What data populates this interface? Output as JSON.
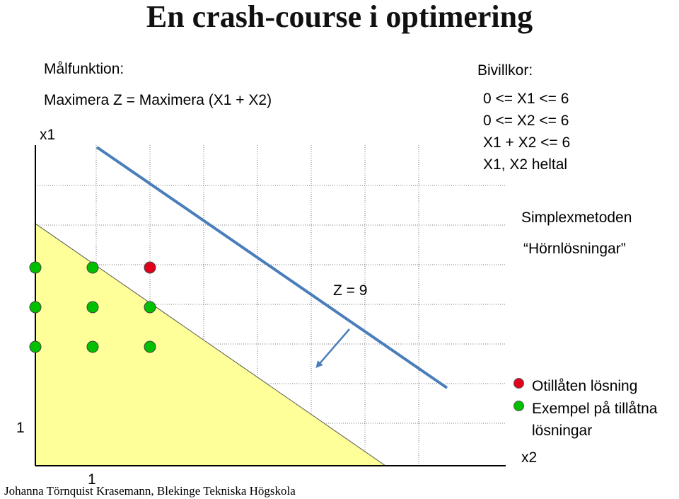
{
  "title": "En crash-course i optimering",
  "objective": {
    "heading": "Målfunktion:",
    "formula": "Maximera Z = Maximera (X1 + X2)"
  },
  "constraints": {
    "heading": "Bivillkor:",
    "items": [
      "0 <= X1 <= 6",
      "0 <= X2 <= 6",
      "X1 + X2 <= 6",
      "X1, X2 heltal"
    ]
  },
  "method": {
    "name": "Simplexmetoden",
    "note": "“Hörnlösningar”"
  },
  "diagram": {
    "x1_axis_label": "x1",
    "x2_axis_label": "x2",
    "tick_x1": "1",
    "tick_x2": "1",
    "objective_line_label": "Z = 9",
    "region_color": "#ffff99",
    "line_color": "#4a7ebb",
    "infeasible_color": "#e3001b",
    "feasible_color": "#00c000",
    "points": [
      {
        "x1": 5,
        "x2": 0,
        "status": "feasible"
      },
      {
        "x1": 5,
        "x2": 1,
        "status": "feasible"
      },
      {
        "x1": 5,
        "x2": 2,
        "status": "infeasible"
      },
      {
        "x1": 4,
        "x2": 0,
        "status": "feasible"
      },
      {
        "x1": 4,
        "x2": 1,
        "status": "feasible"
      },
      {
        "x1": 4,
        "x2": 2,
        "status": "feasible"
      },
      {
        "x1": 3,
        "x2": 0,
        "status": "feasible"
      },
      {
        "x1": 3,
        "x2": 1,
        "status": "feasible"
      },
      {
        "x1": 3,
        "x2": 2,
        "status": "feasible"
      }
    ]
  },
  "legend": {
    "infeasible": "Otillåten lösning",
    "feasible_line1": "Exempel på tillåtna",
    "feasible_line2": "lösningar"
  },
  "footer": "Johanna Törnquist Krasemann, Blekinge Tekniska Högskola"
}
